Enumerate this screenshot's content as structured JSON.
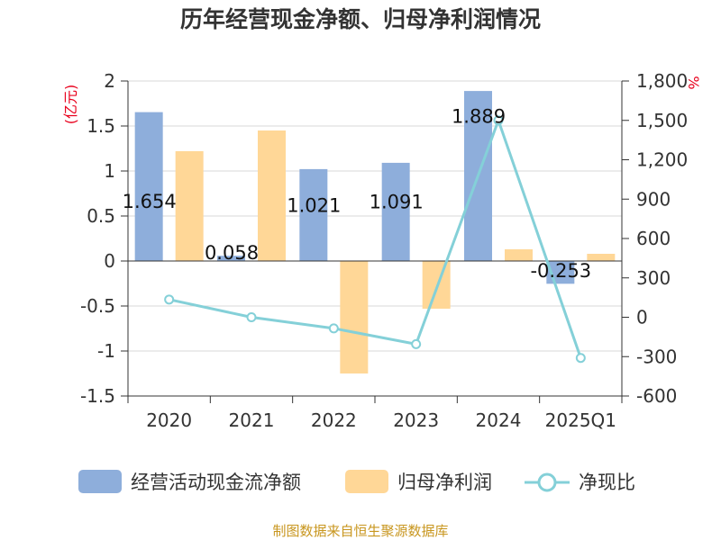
{
  "colors": {
    "bar_cashflow": "#8eaedb",
    "bar_netprofit": "#ffd797",
    "line_ratio": "#84d0d8",
    "axis_unit": "#e8001c",
    "source_text": "#c8961e"
  },
  "chart_data": {
    "type": "bar",
    "title": "历年经营现金净额、归母净利润情况",
    "categories": [
      "2020",
      "2021",
      "2022",
      "2023",
      "2024",
      "2025Q1"
    ],
    "series": [
      {
        "name": "经营活动现金流净额",
        "kind": "bar",
        "axis": "left",
        "values": [
          1.654,
          0.058,
          1.021,
          1.091,
          1.889,
          -0.253
        ],
        "data_labels": [
          "1.654",
          "0.058",
          "1.021",
          "1.091",
          "1.889",
          "-0.253"
        ]
      },
      {
        "name": "归母净利润",
        "kind": "bar",
        "axis": "left",
        "values": [
          1.22,
          1.45,
          -1.25,
          -0.53,
          0.13,
          0.08
        ]
      },
      {
        "name": "净现比",
        "kind": "line",
        "axis": "right",
        "values": [
          135,
          0,
          -85,
          -205,
          1500,
          -310
        ]
      }
    ],
    "y_left": {
      "unit": "(亿元)",
      "range": [
        -1.5,
        2
      ],
      "ticks": [
        2,
        1.5,
        1,
        0.5,
        0,
        -0.5,
        -1,
        -1.5
      ],
      "tick_labels": [
        "2",
        "1.5",
        "1",
        "0.5",
        "0",
        "-0.5",
        "-1",
        "-1.5"
      ]
    },
    "y_right": {
      "unit": "%",
      "range": [
        -600,
        1800
      ],
      "ticks": [
        1800,
        1500,
        1200,
        900,
        600,
        300,
        0,
        -300,
        -600
      ],
      "tick_labels": [
        "1,800",
        "1,500",
        "1,200",
        "900",
        "600",
        "300",
        "0",
        "-300",
        "-600"
      ]
    },
    "grid": true,
    "legend_position": "bottom",
    "legend": [
      "经营活动现金流净额",
      "归母净利润",
      "净现比"
    ],
    "source": "制图数据来自恒生聚源数据库"
  }
}
